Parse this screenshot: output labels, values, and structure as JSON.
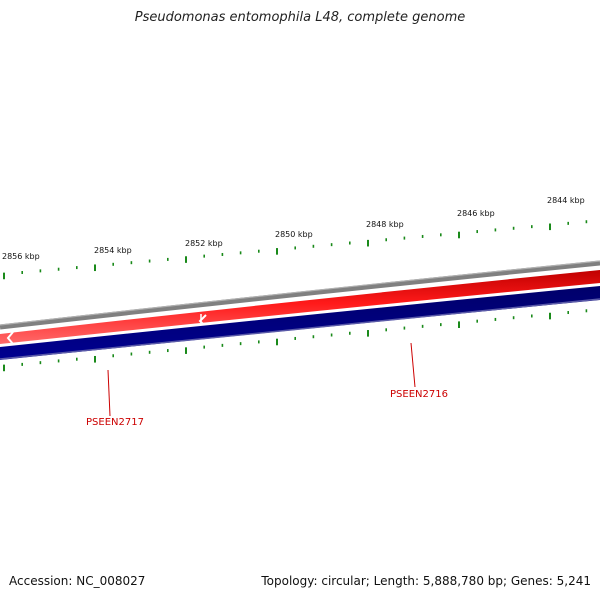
{
  "title": "Pseudomonas entomophila L48, complete genome",
  "footer": {
    "accession": "Accession: NC_008027",
    "stats": "Topology: circular; Length: 5,888,780 bp; Genes: 5,241"
  },
  "colors": {
    "backbone": "#8a8a8a",
    "forward_strand": "#e00000",
    "reverse_strand": "#000080",
    "tick": "#1a8a1a",
    "gene_label": "#cc0000"
  },
  "scale_labels": [
    "2856 kbp",
    "2854 kbp",
    "2852 kbp",
    "2850 kbp",
    "2848 kbp",
    "2846 kbp",
    "2844 kbp"
  ],
  "genes": [
    {
      "label": "PSEEN2717",
      "strand": "reverse"
    },
    {
      "label": "PSEEN2716",
      "strand": "reverse"
    }
  ]
}
